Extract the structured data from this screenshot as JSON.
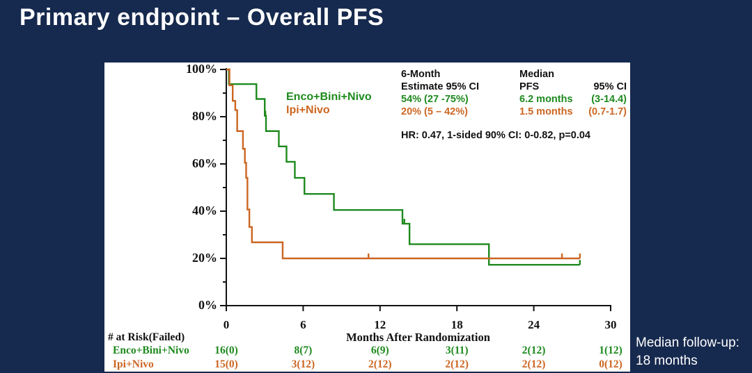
{
  "slide": {
    "title": "Primary endpoint – Overall PFS",
    "footnote_line1": "Median follow-up:",
    "footnote_line2": "18 months"
  },
  "colors": {
    "background": "#16294e",
    "panel": "#ffffff",
    "green": "#1e8a1e",
    "orange": "#cc6622",
    "axis": "#111111"
  },
  "chart_data": {
    "type": "line",
    "subtype": "kaplan-meier-step",
    "xlabel": "Months After Randomization",
    "ylabel": "",
    "x_ticks": [
      0,
      6,
      12,
      18,
      24,
      30
    ],
    "y_ticks_percent": [
      0,
      20,
      40,
      60,
      80,
      100
    ],
    "y_minor_ticks_percent": [
      10,
      30,
      50,
      70,
      90
    ],
    "xlim": [
      0,
      30
    ],
    "ylim": [
      0,
      100
    ],
    "y_axis_labels": [
      "0%",
      "20%",
      "40%",
      "60%",
      "80%",
      "100%"
    ],
    "legend_position": "inside-top-left",
    "grid": false,
    "series": [
      {
        "name": "Enco+Bini+Nivo",
        "color": "#1e8a1e",
        "steps": [
          [
            0,
            100
          ],
          [
            0.2,
            93.8
          ],
          [
            2.35,
            87.5
          ],
          [
            3.0,
            80.4
          ],
          [
            3.1,
            73.9
          ],
          [
            4.1,
            67.4
          ],
          [
            4.7,
            60.9
          ],
          [
            5.35,
            54.1
          ],
          [
            6.1,
            47.3
          ],
          [
            8.4,
            40.5
          ],
          [
            13.75,
            34.7
          ],
          [
            14.3,
            26.0
          ],
          [
            20.5,
            17.3
          ]
        ],
        "end_month": 27.6,
        "censor_marks": [
          [
            3.05,
            80.4
          ],
          [
            13.9,
            34.7
          ],
          [
            27.6,
            17.3
          ]
        ]
      },
      {
        "name": "Ipi+Nivo",
        "color": "#cc6622",
        "steps": [
          [
            0,
            100
          ],
          [
            0.25,
            93.3
          ],
          [
            0.5,
            86.7
          ],
          [
            0.7,
            82.8
          ],
          [
            0.85,
            73.9
          ],
          [
            1.3,
            66.4
          ],
          [
            1.45,
            60.5
          ],
          [
            1.55,
            54.1
          ],
          [
            1.65,
            40.7
          ],
          [
            1.8,
            33.3
          ],
          [
            2.0,
            26.8
          ],
          [
            4.4,
            20.0
          ]
        ],
        "end_month": 27.6,
        "censor_marks": [
          [
            11.1,
            20.0
          ],
          [
            26.2,
            20.0
          ],
          [
            27.6,
            20.0
          ]
        ]
      }
    ]
  },
  "legend": {
    "items": [
      {
        "label": "Enco+Bini+Nivo",
        "color": "#1e8a1e"
      },
      {
        "label": "Ipi+Nivo",
        "color": "#cc6622"
      }
    ]
  },
  "stats": {
    "col1_header_line1": "6-Month",
    "col1_header_line2": "Estimate 95% CI",
    "col2_header_line1": "Median",
    "col2_header_line2": "PFS",
    "col3_header": "95% CI",
    "rows": [
      {
        "estimate": "54% (27 -75%)",
        "median": "6.2 months",
        "ci": "(3-14.4)"
      },
      {
        "estimate": "20% (5 – 42%)",
        "median": "1.5 months",
        "ci": "(0.7-1.7)"
      }
    ],
    "hr_line": "HR: 0.47, 1-sided 90% CI: 0-0.82, p=0.04"
  },
  "risk_table": {
    "header": "# at Risk(Failed)",
    "time_points": [
      0,
      6,
      12,
      18,
      24,
      30
    ],
    "rows": [
      {
        "name": "Enco+Bini+Nivo",
        "color": "#1e8a1e",
        "values": [
          "16(0)",
          "8(7)",
          "6(9)",
          "3(11)",
          "2(12)",
          "1(12)"
        ]
      },
      {
        "name": "Ipi+Nivo",
        "color": "#cc6622",
        "values": [
          "15(0)",
          "3(12)",
          "2(12)",
          "2(12)",
          "2(12)",
          "0(12)"
        ]
      }
    ]
  }
}
